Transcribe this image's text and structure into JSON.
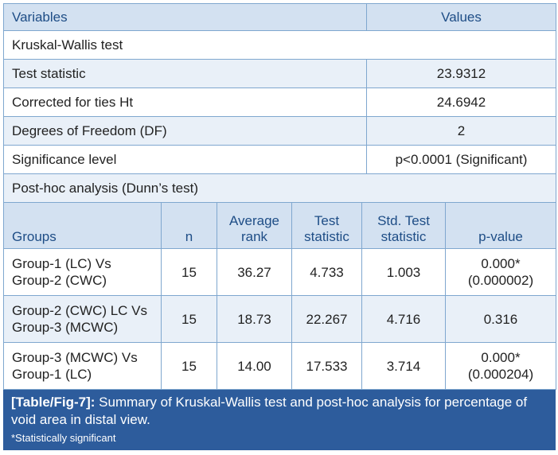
{
  "summary": {
    "header": [
      "Variables",
      "Values"
    ],
    "section_label": "Kruskal-Wallis test",
    "rows": [
      {
        "label": "Test statistic",
        "value": "23.9312"
      },
      {
        "label": "Corrected for ties Ht",
        "value": "24.6942"
      },
      {
        "label": "Degrees of Freedom (DF)",
        "value": "2"
      },
      {
        "label": "Significance level",
        "value": "p<0.0001 (Significant)"
      }
    ],
    "posthoc_label": "Post-hoc analysis (Dunn’s test)"
  },
  "posthoc": {
    "headers": {
      "groups": "Groups",
      "n": "n",
      "avg1": "Average",
      "avg2": "rank",
      "ts1": "Test",
      "ts2": "statistic",
      "std1": "Std. Test",
      "std2": "statistic",
      "p": "p-value"
    },
    "rows": [
      {
        "g1": "Group-1 (LC) Vs",
        "g2": "Group-2 (CWC)",
        "n": "15",
        "avg": "36.27",
        "ts": "4.733",
        "std": "1.003",
        "p1": "0.000*",
        "p2": "(0.000002)"
      },
      {
        "g1": "Group-2 (CWC) LC Vs",
        "g2": "Group-3 (MCWC)",
        "n": "15",
        "avg": "18.73",
        "ts": "22.267",
        "std": "4.716",
        "p1": "0.316",
        "p2": ""
      },
      {
        "g1": "Group-3 (MCWC) Vs",
        "g2": "Group-1 (LC)",
        "n": "15",
        "avg": "14.00",
        "ts": "17.533",
        "std": "3.714",
        "p1": "0.000*",
        "p2": "(0.000204)"
      }
    ]
  },
  "caption": {
    "tag": "[Table/Fig-7]:",
    "text": " Summary of Kruskal-Wallis test and post-hoc analysis for percentage of void area in distal view.",
    "footnote": "*Statistically significant"
  }
}
